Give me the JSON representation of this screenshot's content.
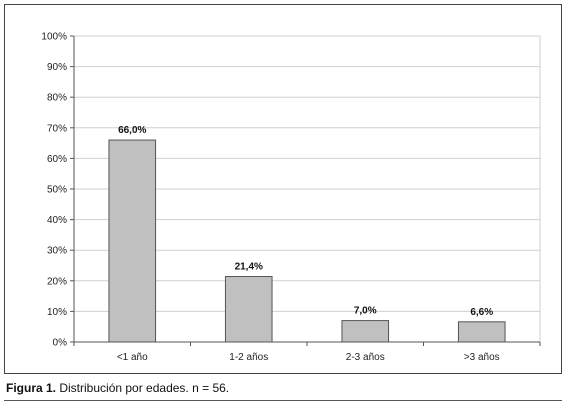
{
  "chart_data": {
    "type": "bar",
    "categories": [
      "<1 año",
      "1-2 años",
      "2-3 años",
      ">3 años"
    ],
    "values": [
      66.0,
      21.4,
      7.0,
      6.6
    ],
    "data_labels": [
      "66,0%",
      "21,4%",
      "7,0%",
      "6,6%"
    ],
    "ylim": [
      0,
      100
    ],
    "yticks": [
      "0%",
      "10%",
      "20%",
      "30%",
      "40%",
      "50%",
      "60%",
      "70%",
      "80%",
      "90%",
      "100%"
    ],
    "grid": true,
    "legend": "none",
    "bar_color": "#c0c0c0",
    "bar_edge_color": "#555555"
  },
  "caption": {
    "label": "Figura 1.",
    "text": " Distribución por edades. n = 56."
  }
}
